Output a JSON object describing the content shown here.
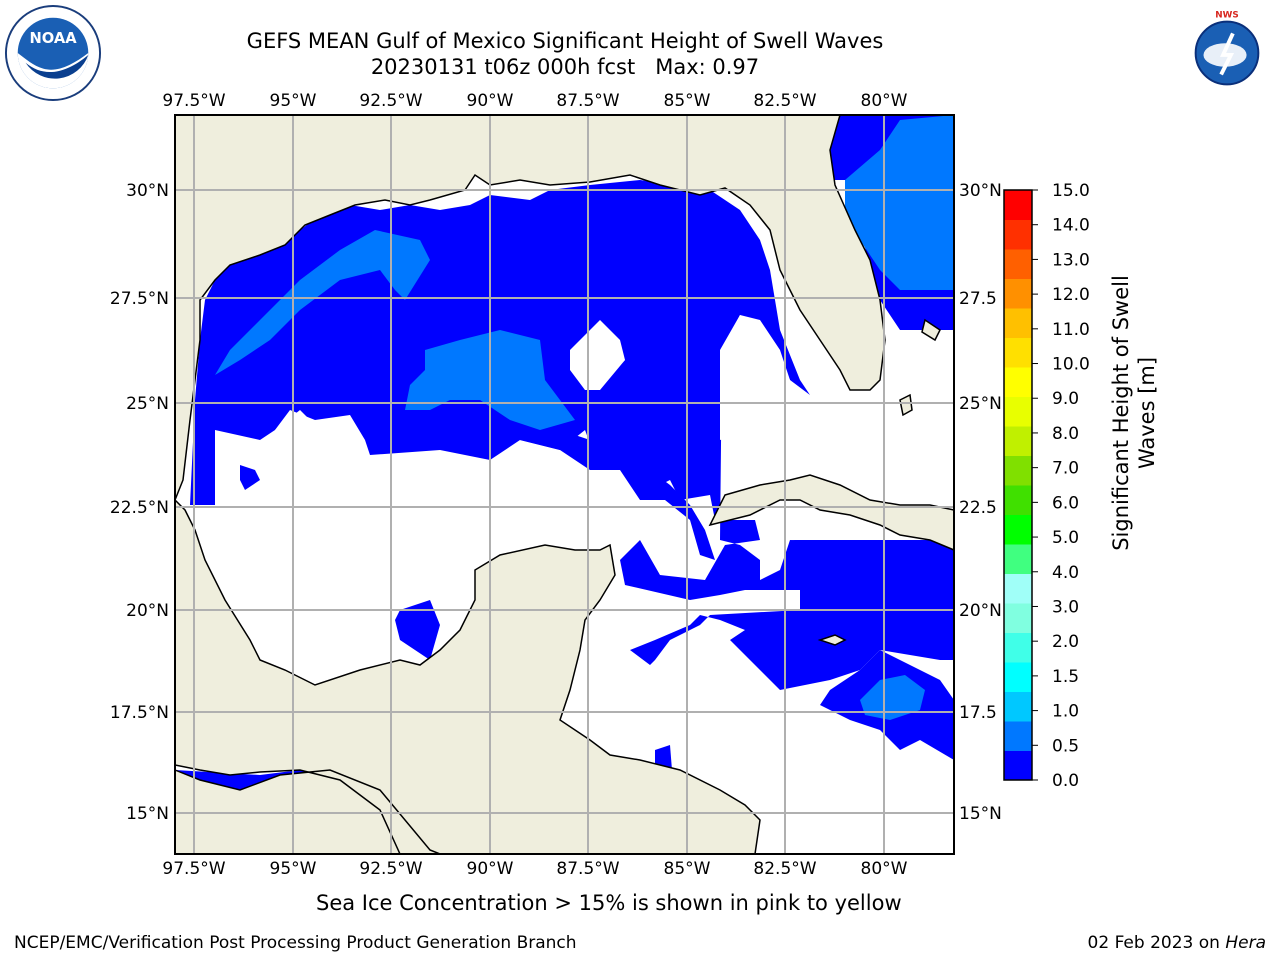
{
  "title": {
    "line1": "GEFS MEAN Gulf of Mexico Significant Height of Swell Waves",
    "line2": "20230131 t06z 000h fcst   Max: 0.97"
  },
  "logos": {
    "left": {
      "icon": "noaa-logo",
      "text": "NOAA"
    },
    "right": {
      "icon": "nws-logo",
      "text": "NATIONAL WEATHER SERVICE"
    }
  },
  "map": {
    "lon_labels": [
      "97.5°W",
      "95°W",
      "92.5°W",
      "90°W",
      "87.5°W",
      "85°W",
      "82.5°W",
      "80°W"
    ],
    "lat_labels_left": [
      "30°N",
      "27.5°N",
      "25°N",
      "22.5°N",
      "20°N",
      "17.5°N",
      "15°N"
    ],
    "lat_labels_right": [
      "30°N",
      "27.5",
      "25°N",
      "22.5",
      "20°N",
      "17.5",
      "15°N"
    ],
    "land_color": "#efeedd",
    "ocean_zero_color": "#ffffff",
    "grid_color": "#b0b0b0"
  },
  "colorbar": {
    "title_line1": "Significant Height of Swell",
    "title_line2": "Waves [m]",
    "ticks": [
      "15.0",
      "14.0",
      "13.0",
      "12.0",
      "11.0",
      "10.0",
      "9.0",
      "8.0",
      "7.0",
      "6.0",
      "5.0",
      "4.0",
      "3.0",
      "2.0",
      "1.5",
      "1.0",
      "0.5",
      "0.0"
    ],
    "colors_bottom_to_top": [
      "#0000ff",
      "#0078ff",
      "#00c8ff",
      "#00ffff",
      "#40ffe8",
      "#80ffe0",
      "#a0fff8",
      "#40ff80",
      "#00ff00",
      "#40e000",
      "#80e000",
      "#c0f000",
      "#e8ff00",
      "#ffff00",
      "#ffe000",
      "#ffc000",
      "#ff9000",
      "#ff6000",
      "#ff3000",
      "#ff0000"
    ]
  },
  "footer": {
    "note": "Sea Ice Concentration > 15% is shown in pink to yellow",
    "credit": "NCEP/EMC/Verification Post Processing Product Generation Branch",
    "date": "02 Feb 2023 on",
    "machine": "Hera"
  }
}
